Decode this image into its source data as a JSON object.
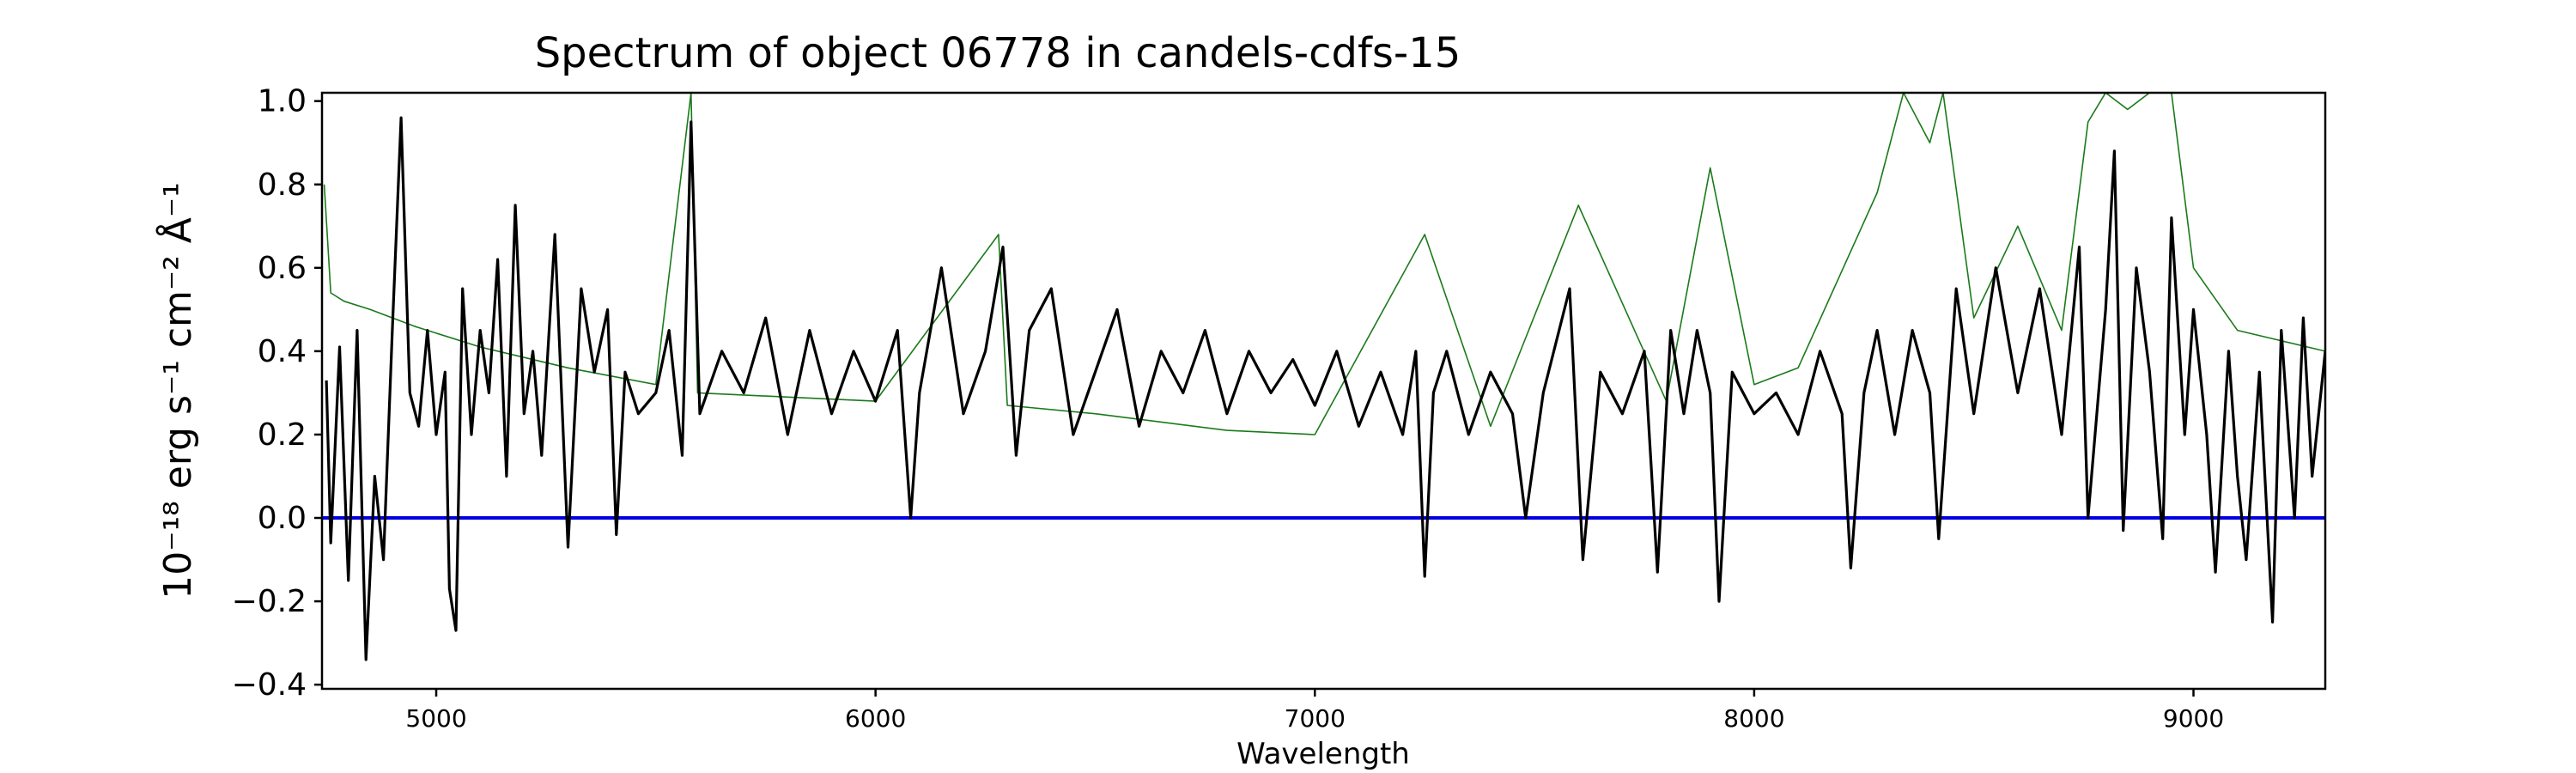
{
  "chart_data": {
    "type": "line",
    "title": "Spectrum of object 06778 in candels-cdfs-15",
    "xlabel": "Wavelength",
    "ylabel": "10⁻¹⁸ erg s⁻¹ cm⁻² Å⁻¹",
    "xlim": [
      4740,
      9300
    ],
    "ylim": [
      -0.41,
      1.02
    ],
    "x_ticks": [
      5000,
      6000,
      7000,
      8000,
      9000
    ],
    "x_tick_labels": [
      "5000",
      "6000",
      "7000",
      "8000",
      "9000"
    ],
    "y_ticks": [
      -0.4,
      -0.2,
      0.0,
      0.2,
      0.4,
      0.6,
      0.8,
      1.0
    ],
    "y_tick_labels": [
      "−0.4",
      "−0.2",
      "0.0",
      "0.2",
      "0.4",
      "0.6",
      "0.8",
      "1.0"
    ],
    "grid": false,
    "legend": "none",
    "series": [
      {
        "color": "#1a7a1a",
        "role": "error spectrum",
        "points": [
          [
            4745,
            0.8
          ],
          [
            4760,
            0.54
          ],
          [
            4790,
            0.52
          ],
          [
            4850,
            0.5
          ],
          [
            4950,
            0.46
          ],
          [
            5100,
            0.41
          ],
          [
            5300,
            0.36
          ],
          [
            5500,
            0.32
          ],
          [
            5580,
            1.02
          ],
          [
            5595,
            0.3
          ],
          [
            5800,
            0.29
          ],
          [
            6000,
            0.28
          ],
          [
            6280,
            0.68
          ],
          [
            6300,
            0.27
          ],
          [
            6500,
            0.25
          ],
          [
            6800,
            0.21
          ],
          [
            7000,
            0.2
          ],
          [
            7250,
            0.68
          ],
          [
            7400,
            0.22
          ],
          [
            7600,
            0.75
          ],
          [
            7800,
            0.28
          ],
          [
            7900,
            0.84
          ],
          [
            8000,
            0.32
          ],
          [
            8100,
            0.36
          ],
          [
            8280,
            0.78
          ],
          [
            8340,
            1.02
          ],
          [
            8400,
            0.9
          ],
          [
            8430,
            1.02
          ],
          [
            8500,
            0.48
          ],
          [
            8600,
            0.7
          ],
          [
            8700,
            0.45
          ],
          [
            8760,
            0.95
          ],
          [
            8800,
            1.02
          ],
          [
            8850,
            0.98
          ],
          [
            8900,
            1.02
          ],
          [
            8950,
            1.02
          ],
          [
            9000,
            0.6
          ],
          [
            9100,
            0.45
          ],
          [
            9300,
            0.4
          ]
        ]
      },
      {
        "color": "#0000e0",
        "role": "zero level",
        "points": [
          [
            4740,
            0.0
          ],
          [
            9300,
            0.0
          ]
        ]
      },
      {
        "color": "#000000",
        "role": "flux",
        "points": [
          [
            4750,
            0.33
          ],
          [
            4760,
            -0.06
          ],
          [
            4780,
            0.41
          ],
          [
            4800,
            -0.15
          ],
          [
            4820,
            0.45
          ],
          [
            4840,
            -0.34
          ],
          [
            4860,
            0.1
          ],
          [
            4880,
            -0.1
          ],
          [
            4900,
            0.45
          ],
          [
            4920,
            0.96
          ],
          [
            4940,
            0.3
          ],
          [
            4960,
            0.22
          ],
          [
            4980,
            0.45
          ],
          [
            5000,
            0.2
          ],
          [
            5020,
            0.35
          ],
          [
            5030,
            -0.17
          ],
          [
            5045,
            -0.27
          ],
          [
            5060,
            0.55
          ],
          [
            5080,
            0.2
          ],
          [
            5100,
            0.45
          ],
          [
            5120,
            0.3
          ],
          [
            5140,
            0.62
          ],
          [
            5160,
            0.1
          ],
          [
            5180,
            0.75
          ],
          [
            5200,
            0.25
          ],
          [
            5220,
            0.4
          ],
          [
            5240,
            0.15
          ],
          [
            5270,
            0.68
          ],
          [
            5300,
            -0.07
          ],
          [
            5330,
            0.55
          ],
          [
            5360,
            0.35
          ],
          [
            5390,
            0.5
          ],
          [
            5410,
            -0.04
          ],
          [
            5430,
            0.35
          ],
          [
            5460,
            0.25
          ],
          [
            5500,
            0.3
          ],
          [
            5530,
            0.45
          ],
          [
            5560,
            0.15
          ],
          [
            5580,
            0.95
          ],
          [
            5600,
            0.25
          ],
          [
            5650,
            0.4
          ],
          [
            5700,
            0.3
          ],
          [
            5750,
            0.48
          ],
          [
            5800,
            0.2
          ],
          [
            5850,
            0.45
          ],
          [
            5900,
            0.25
          ],
          [
            5950,
            0.4
          ],
          [
            6000,
            0.28
          ],
          [
            6050,
            0.45
          ],
          [
            6080,
            0.0
          ],
          [
            6100,
            0.3
          ],
          [
            6150,
            0.6
          ],
          [
            6200,
            0.25
          ],
          [
            6250,
            0.4
          ],
          [
            6290,
            0.65
          ],
          [
            6320,
            0.15
          ],
          [
            6350,
            0.45
          ],
          [
            6400,
            0.55
          ],
          [
            6450,
            0.2
          ],
          [
            6500,
            0.35
          ],
          [
            6550,
            0.5
          ],
          [
            6600,
            0.22
          ],
          [
            6650,
            0.4
          ],
          [
            6700,
            0.3
          ],
          [
            6750,
            0.45
          ],
          [
            6800,
            0.25
          ],
          [
            6850,
            0.4
          ],
          [
            6900,
            0.3
          ],
          [
            6950,
            0.38
          ],
          [
            7000,
            0.27
          ],
          [
            7050,
            0.4
          ],
          [
            7100,
            0.22
          ],
          [
            7150,
            0.35
          ],
          [
            7200,
            0.2
          ],
          [
            7230,
            0.4
          ],
          [
            7250,
            -0.14
          ],
          [
            7270,
            0.3
          ],
          [
            7300,
            0.4
          ],
          [
            7350,
            0.2
          ],
          [
            7400,
            0.35
          ],
          [
            7450,
            0.25
          ],
          [
            7480,
            0.0
          ],
          [
            7520,
            0.3
          ],
          [
            7580,
            0.55
          ],
          [
            7610,
            -0.1
          ],
          [
            7650,
            0.35
          ],
          [
            7700,
            0.25
          ],
          [
            7750,
            0.4
          ],
          [
            7780,
            -0.13
          ],
          [
            7810,
            0.45
          ],
          [
            7840,
            0.25
          ],
          [
            7870,
            0.45
          ],
          [
            7900,
            0.3
          ],
          [
            7920,
            -0.2
          ],
          [
            7950,
            0.35
          ],
          [
            8000,
            0.25
          ],
          [
            8050,
            0.3
          ],
          [
            8100,
            0.2
          ],
          [
            8150,
            0.4
          ],
          [
            8200,
            0.25
          ],
          [
            8220,
            -0.12
          ],
          [
            8250,
            0.3
          ],
          [
            8280,
            0.45
          ],
          [
            8320,
            0.2
          ],
          [
            8360,
            0.45
          ],
          [
            8400,
            0.3
          ],
          [
            8420,
            -0.05
          ],
          [
            8460,
            0.55
          ],
          [
            8500,
            0.25
          ],
          [
            8550,
            0.6
          ],
          [
            8600,
            0.3
          ],
          [
            8650,
            0.55
          ],
          [
            8700,
            0.2
          ],
          [
            8740,
            0.65
          ],
          [
            8760,
            0.0
          ],
          [
            8800,
            0.5
          ],
          [
            8820,
            0.88
          ],
          [
            8840,
            -0.03
          ],
          [
            8870,
            0.6
          ],
          [
            8900,
            0.35
          ],
          [
            8930,
            -0.05
          ],
          [
            8950,
            0.72
          ],
          [
            8980,
            0.2
          ],
          [
            9000,
            0.5
          ],
          [
            9030,
            0.2
          ],
          [
            9050,
            -0.13
          ],
          [
            9080,
            0.4
          ],
          [
            9100,
            0.1
          ],
          [
            9120,
            -0.1
          ],
          [
            9150,
            0.35
          ],
          [
            9180,
            -0.25
          ],
          [
            9200,
            0.45
          ],
          [
            9230,
            0.0
          ],
          [
            9250,
            0.48
          ],
          [
            9270,
            0.1
          ],
          [
            9300,
            0.4
          ]
        ]
      }
    ]
  }
}
